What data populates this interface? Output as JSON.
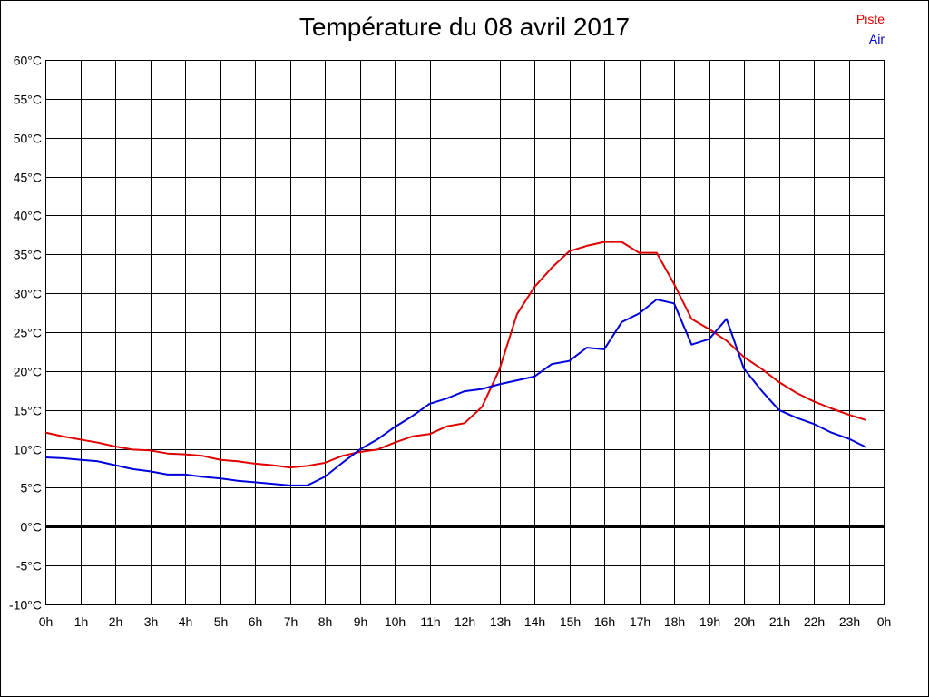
{
  "chart_data": {
    "type": "line",
    "title": "Température du 08 avril 2017",
    "xlabel": "",
    "ylabel": "",
    "x_tick_labels": [
      "0h",
      "1h",
      "2h",
      "3h",
      "4h",
      "5h",
      "6h",
      "7h",
      "8h",
      "9h",
      "10h",
      "11h",
      "12h",
      "13h",
      "14h",
      "15h",
      "16h",
      "17h",
      "18h",
      "19h",
      "20h",
      "21h",
      "22h",
      "23h",
      "0h"
    ],
    "y_tick_labels": [
      "60°C",
      "55°C",
      "50°C",
      "45°C",
      "40°C",
      "35°C",
      "30°C",
      "25°C",
      "20°C",
      "15°C",
      "10°C",
      "5°C",
      "0°C",
      "-5°C",
      "-10°C"
    ],
    "ylim": [
      -10,
      60
    ],
    "xlim": [
      0,
      24
    ],
    "grid": true,
    "legend_position": "top-right",
    "series": [
      {
        "name": "Piste",
        "color": "#e00000",
        "x": [
          0,
          0.5,
          1,
          1.5,
          2,
          2.5,
          3,
          3.5,
          4,
          4.5,
          5,
          5.5,
          6,
          6.5,
          7,
          7.5,
          8,
          8.5,
          9,
          9.5,
          10,
          10.5,
          11,
          11.5,
          12,
          12.5,
          13,
          13.5,
          14,
          14.5,
          15,
          15.5,
          16,
          16.5,
          17,
          17.5,
          18,
          18.5,
          19,
          19.5,
          20,
          20.5,
          21,
          21.5,
          22,
          22.5,
          23,
          23.5
        ],
        "values": [
          12.1,
          11.6,
          11.2,
          10.8,
          10.3,
          9.9,
          9.8,
          9.4,
          9.3,
          9.1,
          8.6,
          8.4,
          8.1,
          7.9,
          7.6,
          7.8,
          8.2,
          9.1,
          9.6,
          9.9,
          10.8,
          11.6,
          11.9,
          12.9,
          13.3,
          15.4,
          20.2,
          27.3,
          30.8,
          33.3,
          35.4,
          36.1,
          36.6,
          36.6,
          35.2,
          35.2,
          31.2,
          26.7,
          25.4,
          23.9,
          21.8,
          20.3,
          18.6,
          17.2,
          16.1,
          15.2,
          14.4,
          13.7
        ]
      },
      {
        "name": "Air",
        "color": "#0000dd",
        "x": [
          0,
          0.5,
          1,
          1.5,
          2,
          2.5,
          3,
          3.5,
          4,
          4.5,
          5,
          5.5,
          6,
          6.5,
          7,
          7.5,
          8,
          8.5,
          9,
          9.5,
          10,
          10.5,
          11,
          11.5,
          12,
          12.5,
          13,
          13.5,
          14,
          14.5,
          15,
          15.5,
          16,
          16.5,
          17,
          17.5,
          18,
          18.5,
          19,
          19.5,
          20,
          20.5,
          21,
          21.5,
          22,
          22.5,
          23,
          23.5
        ],
        "values": [
          8.9,
          8.8,
          8.6,
          8.4,
          7.9,
          7.4,
          7.1,
          6.7,
          6.7,
          6.4,
          6.2,
          5.9,
          5.7,
          5.5,
          5.3,
          5.3,
          6.4,
          8.2,
          9.9,
          11.2,
          12.8,
          14.2,
          15.8,
          16.5,
          17.4,
          17.7,
          18.3,
          18.8,
          19.3,
          20.9,
          21.3,
          23.0,
          22.8,
          26.3,
          27.4,
          29.2,
          28.7,
          23.4,
          24.1,
          26.7,
          20.3,
          17.5,
          15.0,
          14.0,
          13.2,
          12.1,
          11.3,
          10.2
        ]
      }
    ]
  }
}
